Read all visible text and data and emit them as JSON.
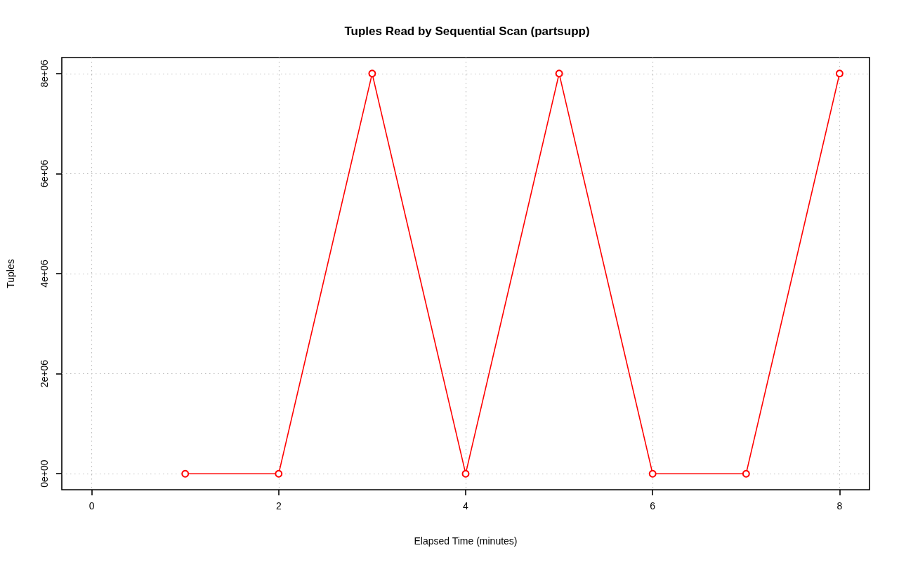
{
  "chart_data": {
    "type": "line",
    "title": "Tuples Read by Sequential Scan (partsupp)",
    "xlabel": "Elapsed Time (minutes)",
    "ylabel": "Tuples",
    "x": [
      1,
      2,
      3,
      4,
      5,
      6,
      7,
      8
    ],
    "series": [
      {
        "color": "#ff0000",
        "values": [
          0,
          0,
          8000000,
          0,
          8000000,
          0,
          0,
          8000000
        ]
      }
    ],
    "xlim": [
      -0.32,
      8.32
    ],
    "ylim": [
      -320000,
      8320000
    ],
    "xticks": [
      0,
      2,
      4,
      6,
      8
    ],
    "yticks": [
      {
        "value": 0,
        "label": "0e+00"
      },
      {
        "value": 2000000,
        "label": "2e+06"
      },
      {
        "value": 4000000,
        "label": "4e+06"
      },
      {
        "value": 6000000,
        "label": "6e+06"
      },
      {
        "value": 8000000,
        "label": "8e+06"
      }
    ],
    "grid": true,
    "marker": "circle",
    "line_style": "solid"
  }
}
